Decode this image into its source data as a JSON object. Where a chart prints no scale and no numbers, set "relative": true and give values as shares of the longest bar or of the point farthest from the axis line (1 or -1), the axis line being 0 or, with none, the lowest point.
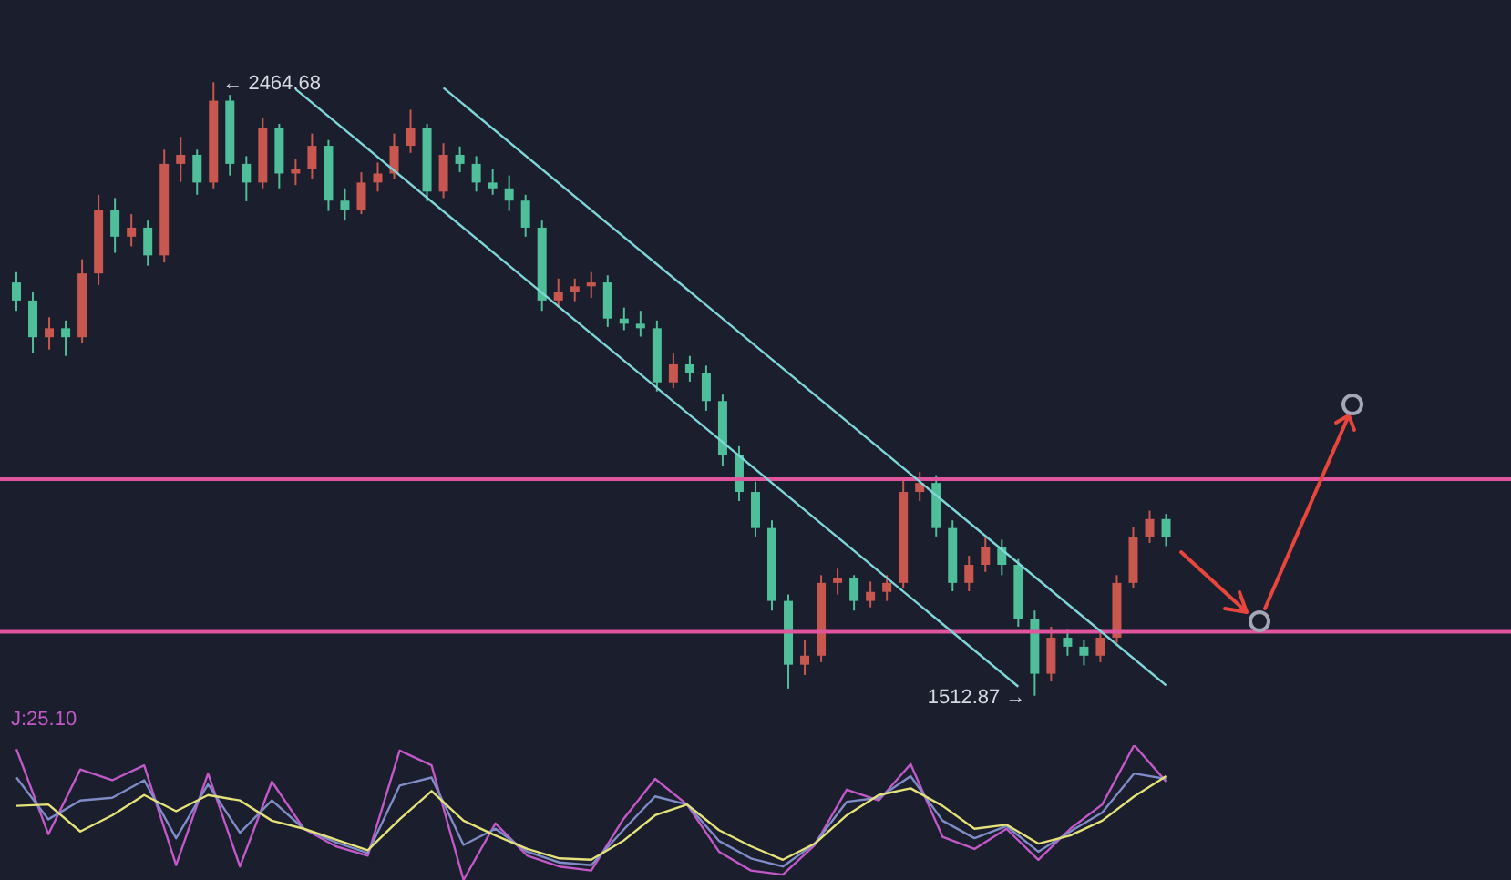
{
  "chart_data": [
    {
      "type": "candlestick",
      "categories": [
        null,
        null,
        null,
        null,
        null,
        null,
        null,
        null,
        null,
        null,
        null,
        null,
        null,
        null,
        null,
        null,
        null,
        null,
        null,
        null,
        null,
        null,
        null,
        null,
        null,
        null,
        null,
        null,
        null,
        null,
        null,
        null,
        null,
        null,
        null,
        null,
        null,
        null,
        null,
        null,
        null,
        null,
        null,
        null,
        null,
        null,
        null,
        null,
        null,
        null,
        null,
        null,
        null,
        null,
        null,
        null,
        null,
        null,
        null,
        null,
        null,
        null,
        null,
        null,
        null,
        null,
        null,
        null,
        null,
        null,
        null
      ],
      "ohlc": [
        [
          2154,
          2170,
          2110,
          2126
        ],
        [
          2126,
          2140,
          2045,
          2069
        ],
        [
          2069,
          2100,
          2050,
          2083
        ],
        [
          2083,
          2095,
          2040,
          2069
        ],
        [
          2069,
          2190,
          2060,
          2168
        ],
        [
          2168,
          2290,
          2150,
          2267
        ],
        [
          2267,
          2285,
          2200,
          2225
        ],
        [
          2225,
          2260,
          2210,
          2239
        ],
        [
          2239,
          2250,
          2180,
          2196
        ],
        [
          2196,
          2360,
          2185,
          2338
        ],
        [
          2338,
          2380,
          2310,
          2352
        ],
        [
          2352,
          2360,
          2290,
          2309
        ],
        [
          2309,
          2464.68,
          2300,
          2436
        ],
        [
          2436,
          2445,
          2320,
          2338
        ],
        [
          2338,
          2350,
          2280,
          2309
        ],
        [
          2309,
          2410,
          2300,
          2394
        ],
        [
          2394,
          2400,
          2300,
          2323
        ],
        [
          2323,
          2345,
          2305,
          2330
        ],
        [
          2330,
          2385,
          2315,
          2366
        ],
        [
          2366,
          2375,
          2265,
          2281
        ],
        [
          2281,
          2300,
          2250,
          2267
        ],
        [
          2267,
          2325,
          2260,
          2309
        ],
        [
          2309,
          2340,
          2295,
          2323
        ],
        [
          2323,
          2385,
          2315,
          2366
        ],
        [
          2366,
          2422,
          2355,
          2394
        ],
        [
          2394,
          2400,
          2280,
          2295
        ],
        [
          2295,
          2370,
          2285,
          2352
        ],
        [
          2352,
          2365,
          2325,
          2338
        ],
        [
          2338,
          2350,
          2295,
          2309
        ],
        [
          2309,
          2330,
          2290,
          2300
        ],
        [
          2300,
          2320,
          2265,
          2281
        ],
        [
          2281,
          2290,
          2225,
          2239
        ],
        [
          2239,
          2250,
          2110,
          2126
        ],
        [
          2126,
          2160,
          2115,
          2140
        ],
        [
          2140,
          2160,
          2125,
          2148
        ],
        [
          2148,
          2170,
          2130,
          2154
        ],
        [
          2154,
          2165,
          2085,
          2098
        ],
        [
          2098,
          2115,
          2080,
          2090
        ],
        [
          2090,
          2110,
          2070,
          2083
        ],
        [
          2083,
          2095,
          1985,
          1999
        ],
        [
          1999,
          2045,
          1990,
          2027
        ],
        [
          2027,
          2040,
          2000,
          2013
        ],
        [
          2013,
          2025,
          1955,
          1970
        ],
        [
          1970,
          1980,
          1870,
          1886
        ],
        [
          1886,
          1900,
          1815,
          1829
        ],
        [
          1829,
          1845,
          1760,
          1773
        ],
        [
          1773,
          1785,
          1645,
          1660
        ],
        [
          1660,
          1670,
          1524,
          1561
        ],
        [
          1561,
          1600,
          1545,
          1575
        ],
        [
          1575,
          1700,
          1565,
          1688
        ],
        [
          1688,
          1710,
          1670,
          1695
        ],
        [
          1695,
          1700,
          1645,
          1660
        ],
        [
          1660,
          1690,
          1650,
          1674
        ],
        [
          1674,
          1700,
          1660,
          1688
        ],
        [
          1688,
          1850,
          1680,
          1829
        ],
        [
          1829,
          1860,
          1815,
          1843
        ],
        [
          1843,
          1855,
          1760,
          1773
        ],
        [
          1773,
          1785,
          1675,
          1688
        ],
        [
          1688,
          1730,
          1675,
          1716
        ],
        [
          1716,
          1760,
          1705,
          1744
        ],
        [
          1744,
          1755,
          1700,
          1716
        ],
        [
          1716,
          1725,
          1620,
          1632
        ],
        [
          1632,
          1645,
          1512.87,
          1547
        ],
        [
          1547,
          1620,
          1535,
          1603
        ],
        [
          1603,
          1615,
          1575,
          1589
        ],
        [
          1589,
          1600,
          1560,
          1575
        ],
        [
          1575,
          1615,
          1565,
          1603
        ],
        [
          1603,
          1700,
          1595,
          1688
        ],
        [
          1688,
          1775,
          1680,
          1759
        ],
        [
          1759,
          1800,
          1750,
          1787
        ],
        [
          1787,
          1795,
          1745,
          1759
        ]
      ],
      "colors": [
        "#4fbf9a",
        "#4fbf9a",
        "#c8584f",
        "#4fbf9a",
        "#c8584f",
        "#c8584f",
        "#4fbf9a",
        "#c8584f",
        "#4fbf9a",
        "#c8584f",
        "#c8584f",
        "#4fbf9a",
        "#c8584f",
        "#4fbf9a",
        "#4fbf9a",
        "#c8584f",
        "#4fbf9a",
        "#c8584f",
        "#c8584f",
        "#4fbf9a",
        "#4fbf9a",
        "#c8584f",
        "#c8584f",
        "#c8584f",
        "#c8584f",
        "#4fbf9a",
        "#c8584f",
        "#4fbf9a",
        "#4fbf9a",
        "#4fbf9a",
        "#4fbf9a",
        "#4fbf9a",
        "#4fbf9a",
        "#c8584f",
        "#c8584f",
        "#c8584f",
        "#4fbf9a",
        "#4fbf9a",
        "#4fbf9a",
        "#4fbf9a",
        "#c8584f",
        "#4fbf9a",
        "#4fbf9a",
        "#4fbf9a",
        "#4fbf9a",
        "#4fbf9a",
        "#4fbf9a",
        "#4fbf9a",
        "#c8584f",
        "#c8584f",
        "#c8584f",
        "#4fbf9a",
        "#c8584f",
        "#c8584f",
        "#c8584f",
        "#c8584f",
        "#4fbf9a",
        "#4fbf9a",
        "#c8584f",
        "#c8584f",
        "#4fbf9a",
        "#4fbf9a",
        "#4fbf9a",
        "#c8584f",
        "#4fbf9a",
        "#4fbf9a",
        "#c8584f",
        "#c8584f",
        "#c8584f",
        "#c8584f",
        "#4fbf9a"
      ],
      "series": [
        {
          "type": "line",
          "color": "#7fd6d8",
          "values": [
            null,
            null,
            null,
            null,
            null,
            null,
            null,
            null,
            null,
            null,
            null,
            null,
            null,
            null,
            null,
            null,
            null,
            2454,
            null,
            null,
            null,
            null,
            null,
            null,
            null,
            null,
            null,
            null,
            null,
            null,
            null,
            null,
            null,
            null,
            null,
            null,
            null,
            null,
            null,
            null,
            null,
            null,
            null,
            null,
            null,
            null,
            null,
            null,
            null,
            null,
            null,
            null,
            null,
            null,
            null,
            null,
            null,
            null,
            null,
            null,
            null,
            1527,
            null,
            null,
            null,
            null,
            null,
            null,
            null,
            null,
            null
          ]
        },
        {
          "type": "line",
          "color": "#7fd6d8",
          "values": [
            null,
            null,
            null,
            null,
            null,
            null,
            null,
            null,
            null,
            null,
            null,
            null,
            null,
            null,
            null,
            null,
            null,
            null,
            null,
            null,
            null,
            null,
            null,
            null,
            null,
            null,
            2456,
            null,
            null,
            null,
            null,
            null,
            null,
            null,
            null,
            null,
            null,
            null,
            null,
            null,
            null,
            null,
            null,
            null,
            null,
            null,
            null,
            null,
            null,
            null,
            null,
            null,
            null,
            null,
            null,
            null,
            null,
            null,
            null,
            null,
            null,
            null,
            null,
            null,
            null,
            null,
            null,
            null,
            null,
            null,
            1529
          ]
        }
      ],
      "ref_lines": [
        {
          "axis": "y",
          "value": 1849,
          "color": "#e0559e"
        },
        {
          "axis": "y",
          "value": 1612,
          "color": "#e0559e"
        }
      ],
      "annotations": [
        "← 2464.68",
        "1512.87 →"
      ]
    },
    {
      "type": "line",
      "relative": true,
      "categories": [
        null,
        null,
        null,
        null,
        null,
        null,
        null,
        null,
        null,
        null,
        null,
        null,
        null,
        null,
        null,
        null,
        null,
        null,
        null,
        null,
        null,
        null,
        null,
        null,
        null,
        null,
        null,
        null,
        null,
        null,
        null,
        null,
        null,
        null,
        null,
        null,
        null
      ],
      "series": [
        {
          "color": "#c259c9",
          "values": [
            0.97,
            0.34,
            0.82,
            0.74,
            0.85,
            0.11,
            0.79,
            0.1,
            0.73,
            0.38,
            0.25,
            0.18,
            0.96,
            0.85,
            0,
            0.42,
            0.18,
            0.1,
            0.07,
            0.45,
            0.75,
            0.56,
            0.21,
            0.07,
            0.04,
            0.26,
            0.67,
            0.59,
            0.86,
            0.32,
            0.23,
            0.38,
            0.15,
            0.38,
            0.56,
            1,
            0.73
          ]
        },
        {
          "color": "#7f8cc8",
          "values": [
            0.76,
            0.45,
            0.59,
            0.61,
            0.74,
            0.31,
            0.71,
            0.35,
            0.59,
            0.38,
            0.28,
            0.2,
            0.7,
            0.76,
            0.26,
            0.38,
            0.21,
            0.13,
            0.11,
            0.37,
            0.62,
            0.56,
            0.29,
            0.16,
            0.1,
            0.27,
            0.58,
            0.61,
            0.77,
            0.44,
            0.31,
            0.4,
            0.21,
            0.36,
            0.5,
            0.79,
            0.75
          ]
        },
        {
          "color": "#e6e27a",
          "values": [
            0.55,
            0.56,
            0.36,
            0.48,
            0.63,
            0.51,
            0.63,
            0.59,
            0.44,
            0.38,
            0.3,
            0.22,
            0.45,
            0.66,
            0.44,
            0.33,
            0.23,
            0.16,
            0.15,
            0.29,
            0.48,
            0.56,
            0.37,
            0.25,
            0.15,
            0.27,
            0.48,
            0.63,
            0.68,
            0.55,
            0.38,
            0.41,
            0.27,
            0.33,
            0.44,
            0.62,
            0.77
          ]
        }
      ],
      "annotations": [
        "J:25.10"
      ]
    }
  ]
}
